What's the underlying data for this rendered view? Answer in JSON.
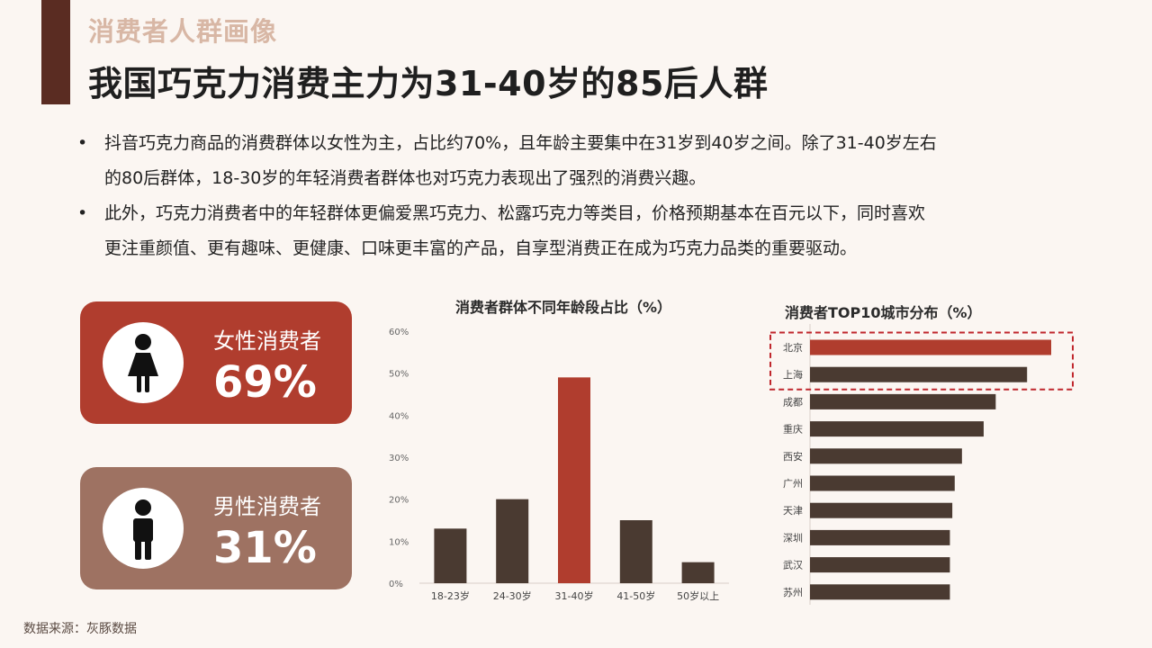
{
  "header": {
    "section_title": "消费者人群画像",
    "main_title": "我国巧克力消费主力为31-40岁的85后人群"
  },
  "bullets": [
    {
      "marker": "•",
      "line1": "抖音巧克力商品的消费群体以女性为主，占比约70%，且年龄主要集中在31岁到40岁之间。除了31-40岁左右",
      "line2": "的80后群体，18-30岁的年轻消费者群体也对巧克力表现出了强烈的消费兴趣。"
    },
    {
      "marker": "•",
      "line1": "此外，巧克力消费者中的年轻群体更偏爱黑巧克力、松露巧克力等类目，价格预期基本在百元以下，同时喜欢",
      "line2": "更注重颜值、更有趣味、更健康、口味更丰富的产品，自享型消费正在成为巧克力品类的重要驱动。"
    }
  ],
  "gender": {
    "female": {
      "label": "女性消费者",
      "value": "69%",
      "icon": "female-person-icon",
      "color": "#b03d2e"
    },
    "male": {
      "label": "男性消费者",
      "value": "31%",
      "icon": "male-person-icon",
      "color": "#9e7262"
    }
  },
  "source": "数据来源：灰豚数据",
  "chart_data": [
    {
      "type": "bar",
      "title": "消费者群体不同年龄段占比（%）",
      "categories": [
        "18-23岁",
        "24-30岁",
        "31-40岁",
        "41-50岁",
        "50岁以上"
      ],
      "values": [
        13,
        20,
        49,
        15,
        5
      ],
      "highlight_index": 2,
      "yticks": [
        "0%",
        "10%",
        "20%",
        "30%",
        "40%",
        "50%",
        "60%"
      ],
      "ylim": [
        0,
        60
      ],
      "grid": false,
      "colors": {
        "bar": "#4a3a31",
        "highlight": "#b03d2e"
      }
    },
    {
      "type": "bar",
      "orientation": "horizontal",
      "title": "消费者TOP10城市分布（%）",
      "categories": [
        "北京",
        "上海",
        "成都",
        "重庆",
        "西安",
        "广州",
        "天津",
        "深圳",
        "武汉",
        "苏州"
      ],
      "values": [
        100,
        90,
        77,
        72,
        63,
        60,
        59,
        58,
        58,
        58
      ],
      "highlight_index": 0,
      "highlight_box": [
        0,
        1
      ],
      "grid": false,
      "colors": {
        "bar": "#4a3a31",
        "highlight": "#b03d2e",
        "box": "#c0272d"
      }
    }
  ]
}
